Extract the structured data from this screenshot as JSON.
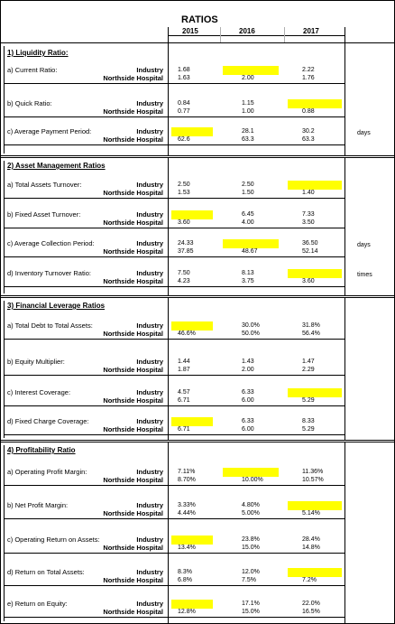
{
  "title": "RATIOS",
  "years": [
    "2015",
    "2016",
    "2017"
  ],
  "labels": {
    "industry": "Industry",
    "hospital": "Northside Hospital"
  },
  "sections": [
    {
      "heading": "1) Liquidity Ratio:",
      "rows": [
        {
          "label": "a) Current Ratio:",
          "industry": [
            "1.68",
            "",
            "2.22"
          ],
          "hospital": [
            "1.63",
            "2.00",
            "1.76"
          ],
          "unit": "",
          "highlight": [
            1
          ]
        },
        {
          "label": "b) Quick Ratio:",
          "industry": [
            "0.84",
            "1.15",
            ""
          ],
          "hospital": [
            "0.77",
            "1.00",
            "0.88"
          ],
          "unit": "",
          "highlight": [
            2
          ]
        },
        {
          "label": "c) Average Payment Period:",
          "industry": [
            "",
            "28.1",
            "30.2"
          ],
          "hospital": [
            "62.6",
            "63.3",
            "63.3"
          ],
          "unit": "days",
          "highlight": [
            0
          ]
        }
      ]
    },
    {
      "heading": "2) Asset Management Ratios",
      "rows": [
        {
          "label": "a) Total Assets Turnover:",
          "industry": [
            "2.50",
            "2.50",
            ""
          ],
          "hospital": [
            "1.53",
            "1.50",
            "1.40"
          ],
          "unit": "",
          "highlight": [
            2
          ]
        },
        {
          "label": "b) Fixed Asset Turnover:",
          "industry": [
            "",
            "6.45",
            "7.33"
          ],
          "hospital": [
            "3.60",
            "4.00",
            "3.50"
          ],
          "unit": "",
          "highlight": [
            0
          ]
        },
        {
          "label": "c) Average Collection Period:",
          "industry": [
            "24.33",
            "",
            "36.50"
          ],
          "hospital": [
            "37.85",
            "48.67",
            "52.14"
          ],
          "unit": "days",
          "highlight": [
            1
          ]
        },
        {
          "label": "d) Inventory Turnover Ratio:",
          "industry": [
            "7.50",
            "8.13",
            ""
          ],
          "hospital": [
            "4.23",
            "3.75",
            "3.60"
          ],
          "unit": "times",
          "highlight": [
            2
          ]
        }
      ]
    },
    {
      "heading": "3) Financial Leverage Ratios",
      "rows": [
        {
          "label": "a) Total Debt to Total Assets:",
          "industry": [
            "",
            "30.0%",
            "31.8%"
          ],
          "hospital": [
            "46.6%",
            "50.0%",
            "56.4%"
          ],
          "unit": "",
          "highlight": [
            0
          ]
        },
        {
          "label": "b) Equity Multiplier:",
          "industry": [
            "1.44",
            "1.43",
            "1.47"
          ],
          "hospital": [
            "1.87",
            "2.00",
            "2.29"
          ],
          "unit": "",
          "highlight": []
        },
        {
          "label": "c) Interest Coverage:",
          "industry": [
            "4.57",
            "6.33",
            ""
          ],
          "hospital": [
            "6.71",
            "6.00",
            "5.29"
          ],
          "unit": "",
          "highlight": [
            2
          ]
        },
        {
          "label": "d) Fixed Charge Coverage:",
          "industry": [
            "",
            "6.33",
            "8.33"
          ],
          "hospital": [
            "6.71",
            "6.00",
            "5.29"
          ],
          "unit": "",
          "highlight": [
            0
          ]
        }
      ]
    },
    {
      "heading": "4) Profitability Ratio",
      "rows": [
        {
          "label": "a) Operating Profit Margin:",
          "industry": [
            "7.11%",
            "",
            "11.36%"
          ],
          "hospital": [
            "8.70%",
            "10.00%",
            "10.57%"
          ],
          "unit": "",
          "highlight": [
            1
          ]
        },
        {
          "label": "b) Net Profit Margin:",
          "industry": [
            "3.33%",
            "4.80%",
            ""
          ],
          "hospital": [
            "4.44%",
            "5.00%",
            "5.14%"
          ],
          "unit": "",
          "highlight": [
            2
          ]
        },
        {
          "label": "c) Operating Return on Assets:",
          "industry": [
            "",
            "23.8%",
            "28.4%"
          ],
          "hospital": [
            "13.4%",
            "15.0%",
            "14.8%"
          ],
          "unit": "",
          "highlight": [
            0
          ]
        },
        {
          "label": "d) Return on Total Assets:",
          "industry": [
            "8.3%",
            "12.0%",
            ""
          ],
          "hospital": [
            "6.8%",
            "7.5%",
            "7.2%"
          ],
          "unit": "",
          "highlight": [
            2
          ]
        },
        {
          "label": "e) Return on Equity:",
          "industry": [
            "",
            "17.1%",
            "22.0%"
          ],
          "hospital": [
            "12.8%",
            "15.0%",
            "16.5%"
          ],
          "unit": "",
          "highlight": [
            0
          ]
        }
      ]
    }
  ],
  "colors": {
    "highlight": "#ffff00",
    "gridline": "#b0b0b0",
    "border": "#000000"
  }
}
